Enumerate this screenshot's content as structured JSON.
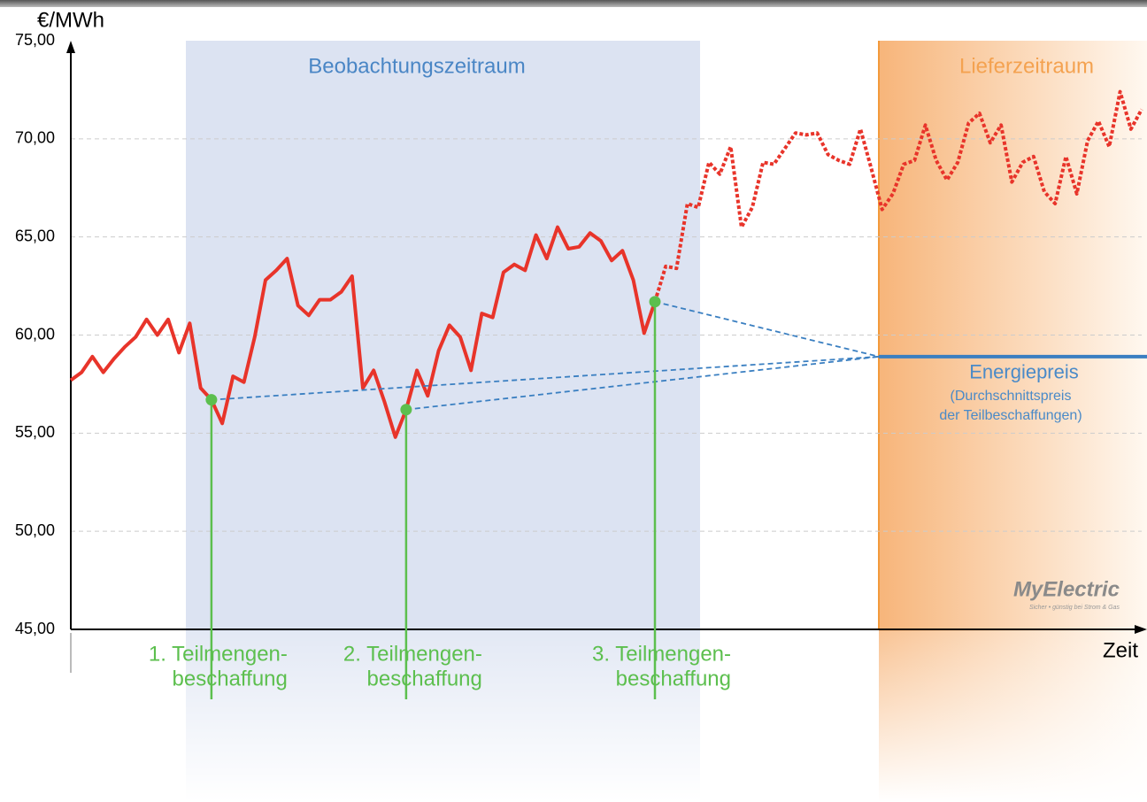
{
  "chart_data": {
    "type": "line",
    "y_label": "€/MWh",
    "x_label": "Zeit",
    "ylim": [
      45,
      75
    ],
    "yticks": [
      {
        "value": 45,
        "label": "45,00"
      },
      {
        "value": 50,
        "label": "50,00"
      },
      {
        "value": 55,
        "label": "55,00"
      },
      {
        "value": 60,
        "label": "60,00"
      },
      {
        "value": 65,
        "label": "65,00"
      },
      {
        "value": 70,
        "label": "70,00"
      },
      {
        "value": 75,
        "label": "75,00"
      }
    ],
    "grid": true,
    "periods": [
      "Beobachtungszeitraum",
      "Lieferzeitraum"
    ],
    "series": [
      {
        "color": "#e8342a",
        "style": "solid",
        "values": [
          57.7,
          58.1,
          58.9,
          58.1,
          58.8,
          59.4,
          59.9,
          60.8,
          60.0,
          60.8,
          59.1,
          60.6,
          57.3,
          56.7,
          55.5,
          57.9,
          57.6,
          59.9,
          62.8,
          63.3,
          63.9,
          61.5,
          61.0,
          61.8,
          61.8,
          62.2,
          63.0,
          57.3,
          58.2,
          56.6,
          54.8,
          56.2,
          58.2,
          56.9,
          59.2,
          60.5,
          59.9,
          58.2,
          61.1,
          60.9,
          63.2,
          63.6,
          63.3,
          65.1,
          63.9,
          65.5,
          64.4,
          64.5,
          65.2,
          64.8,
          63.8,
          64.3,
          62.8,
          60.1,
          61.7,
          null,
          null,
          null,
          null,
          null,
          null,
          null,
          null,
          null,
          null,
          null,
          null,
          null,
          null,
          null,
          null,
          null,
          null,
          null,
          null,
          null,
          null,
          null,
          null,
          null,
          null,
          null,
          null,
          null,
          null,
          null,
          null,
          null,
          null,
          null,
          null,
          null,
          null,
          null,
          null,
          null,
          null,
          null,
          null,
          null
        ]
      },
      {
        "color": "#e8342a",
        "style": "dotted",
        "values": [
          null,
          null,
          null,
          null,
          null,
          null,
          null,
          null,
          null,
          null,
          null,
          null,
          null,
          null,
          null,
          null,
          null,
          null,
          null,
          null,
          null,
          null,
          null,
          null,
          null,
          null,
          null,
          null,
          null,
          null,
          null,
          null,
          null,
          null,
          null,
          null,
          null,
          null,
          null,
          null,
          null,
          null,
          null,
          null,
          null,
          null,
          null,
          null,
          null,
          null,
          null,
          null,
          null,
          null,
          61.7,
          63.5,
          63.4,
          66.7,
          66.5,
          68.8,
          68.2,
          69.6,
          65.5,
          66.5,
          68.8,
          68.7,
          69.5,
          70.3,
          70.2,
          70.3,
          69.2,
          68.9,
          68.7,
          70.5,
          68.5,
          66.4,
          67.2,
          68.7,
          68.9,
          70.7,
          68.9,
          67.9,
          68.8,
          70.8,
          71.3,
          69.8,
          70.7,
          67.8,
          68.8,
          69.1,
          67.3,
          66.7,
          69.1,
          67.2,
          69.9,
          70.9,
          69.6,
          72.4,
          70.5,
          71.5
        ]
      }
    ],
    "purchases": [
      {
        "value": 56.7,
        "label": [
          "1. Teilmengen-",
          "beschaffung"
        ]
      },
      {
        "value": 56.2,
        "label": [
          "2. Teilmengen-",
          "beschaffung"
        ]
      },
      {
        "value": 61.7,
        "label": [
          "3. Teilmengen-",
          "beschaffung"
        ]
      }
    ],
    "energy_price": {
      "value": 58.9,
      "label": "Energiepreis",
      "note": [
        "(Durchschnittspreis",
        "der Teilbeschaffungen)"
      ],
      "color": "#3a7fc1"
    },
    "logo": {
      "name": "MyElectric",
      "tagline": "Sicher • günstig bei Strom & Gas"
    }
  }
}
